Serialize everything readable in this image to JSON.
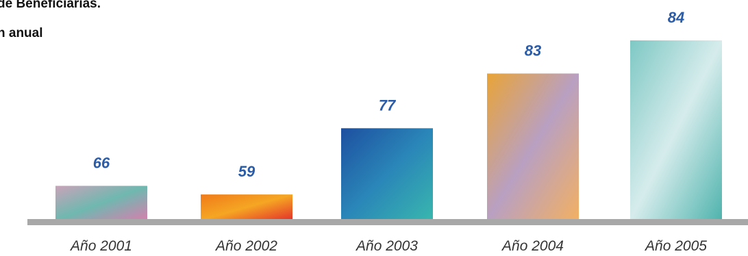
{
  "title_lines": [
    "de Beneficiarias.",
    "n anual"
  ],
  "colors": {
    "value_label": "#2b5ca8",
    "axis": "#a8a8a8",
    "bar_gradients": [
      [
        "#c9a3b9",
        "#6fb8b0",
        "#d77fae"
      ],
      [
        "#f07a1a",
        "#f5a623",
        "#e3302a"
      ],
      [
        "#1d4fa0",
        "#2a86b8",
        "#39b7ae"
      ],
      [
        "#e9a437",
        "#b9a0c2",
        "#f2b062"
      ],
      [
        "#7ec8c4",
        "#d6ecec",
        "#4fb3ad"
      ]
    ]
  },
  "chart_data": {
    "type": "bar",
    "categories": [
      "Año 2001",
      "Año 2002",
      "Año 2003",
      "Año 2004",
      "Año 2005"
    ],
    "values": [
      66,
      59,
      77,
      83,
      84
    ],
    "bar_levels_shown": [
      0.24,
      0.18,
      0.64,
      1.02,
      1.25
    ],
    "data_labels": [
      "66",
      "59",
      "77",
      "83",
      "84"
    ],
    "grid": false,
    "legend": "none"
  }
}
